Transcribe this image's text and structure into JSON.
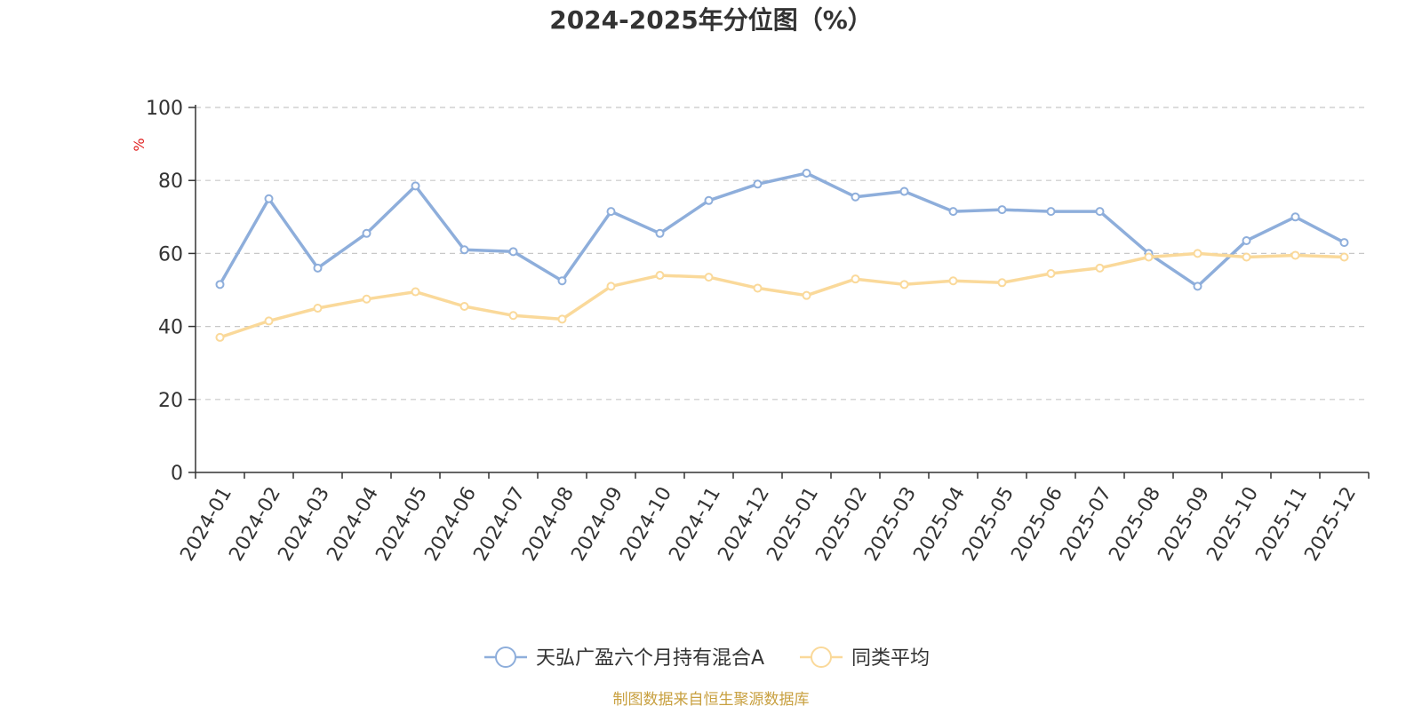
{
  "chart_data": {
    "type": "line",
    "title": "2024-2025年分位图（%）",
    "ylabel": "%",
    "ylim": [
      0,
      100
    ],
    "yticks": [
      0,
      20,
      40,
      60,
      80,
      100
    ],
    "grid": true,
    "legend_position": "bottom",
    "categories": [
      "2024-01",
      "2024-02",
      "2024-03",
      "2024-04",
      "2024-05",
      "2024-06",
      "2024-07",
      "2024-08",
      "2024-09",
      "2024-10",
      "2024-11",
      "2024-12",
      "2025-01",
      "2025-02",
      "2025-03",
      "2025-04",
      "2025-05",
      "2025-06",
      "2025-07",
      "2025-08",
      "2025-09",
      "2025-10",
      "2025-11",
      "2025-12"
    ],
    "series": [
      {
        "name": "天弘广盈六个月持有混合A",
        "color": "#8eaedb",
        "values": [
          51.5,
          75.0,
          56.0,
          65.5,
          78.5,
          61.0,
          60.5,
          52.5,
          71.5,
          65.5,
          74.5,
          79.0,
          82.0,
          75.5,
          77.0,
          71.5,
          72.0,
          71.5,
          71.5,
          60.0,
          51.0,
          63.5,
          70.0,
          63.0
        ]
      },
      {
        "name": "同类平均",
        "color": "#fad99a",
        "values": [
          37.0,
          41.5,
          45.0,
          47.5,
          49.5,
          45.5,
          43.0,
          42.0,
          51.0,
          54.0,
          53.5,
          50.5,
          48.5,
          53.0,
          51.5,
          52.5,
          52.0,
          54.5,
          56.0,
          59.0,
          60.0,
          59.0,
          59.5,
          59.0
        ]
      }
    ]
  },
  "source_note": "制图数据来自恒生聚源数据库"
}
